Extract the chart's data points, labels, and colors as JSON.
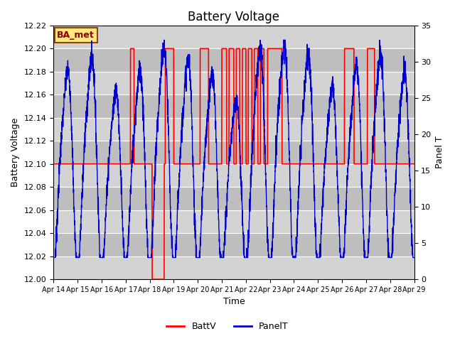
{
  "title": "Battery Voltage",
  "xlabel": "Time",
  "ylabel_left": "Battery Voltage",
  "ylabel_right": "Panel T",
  "ylim_left": [
    12.0,
    12.22
  ],
  "ylim_right": [
    0,
    35
  ],
  "yticks_left": [
    12.0,
    12.02,
    12.04,
    12.06,
    12.08,
    12.1,
    12.12,
    12.14,
    12.16,
    12.18,
    12.2,
    12.22
  ],
  "yticks_right": [
    0,
    5,
    10,
    15,
    20,
    25,
    30,
    35
  ],
  "xtick_labels": [
    "Apr 14",
    "Apr 15",
    "Apr 16",
    "Apr 17",
    "Apr 18",
    "Apr 19",
    "Apr 20",
    "Apr 21",
    "Apr 22",
    "Apr 23",
    "Apr 24",
    "Apr 25",
    "Apr 26",
    "Apr 27",
    "Apr 28",
    "Apr 29"
  ],
  "station_label": "BA_met",
  "batt_color": "#FF0000",
  "panel_color": "#0000CD",
  "plot_bg_color": "#BEBEBE",
  "band_color": "#D3D3D3",
  "legend_labels": [
    "BattV",
    "PanelT"
  ],
  "title_fontsize": 12,
  "axis_label_fontsize": 9,
  "tick_fontsize": 8
}
